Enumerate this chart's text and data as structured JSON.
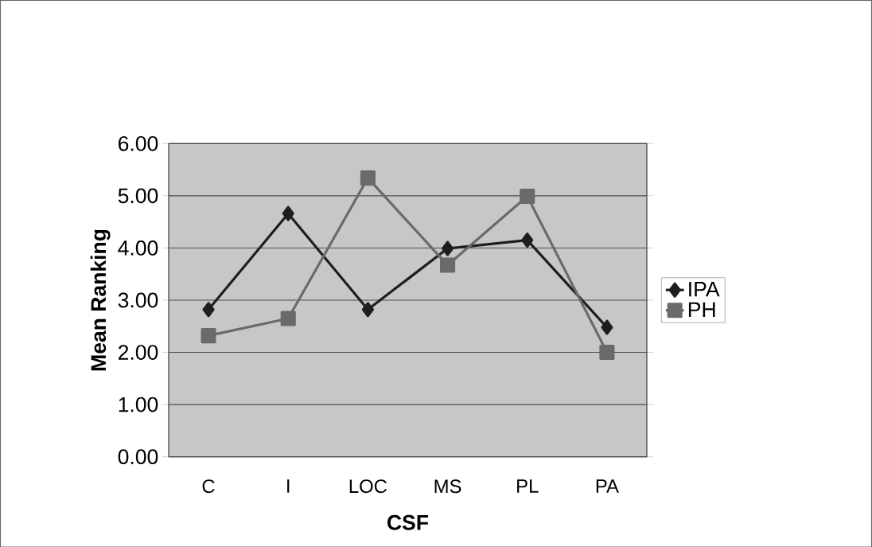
{
  "chart_data": {
    "type": "line",
    "xlabel": "CSF",
    "ylabel": "Mean Ranking",
    "categories": [
      "C",
      "I",
      "LOC",
      "MS",
      "PL",
      "PA"
    ],
    "series": [
      {
        "name": "IPA",
        "color": "#1e1e1e",
        "marker": "diamond",
        "values": [
          2.82,
          4.66,
          2.82,
          3.99,
          4.15,
          2.48
        ]
      },
      {
        "name": "PH",
        "color": "#6a6a6a",
        "marker": "square",
        "values": [
          2.32,
          2.65,
          5.34,
          3.67,
          4.99,
          2.0
        ]
      }
    ],
    "ylim": [
      0,
      6
    ],
    "yticks": [
      {
        "value": 0,
        "label": "0.00"
      },
      {
        "value": 1,
        "label": "1.00"
      },
      {
        "value": 2,
        "label": "2.00"
      },
      {
        "value": 3,
        "label": "3.00"
      },
      {
        "value": 4,
        "label": "4.00"
      },
      {
        "value": 5,
        "label": "5.00"
      },
      {
        "value": 6,
        "label": "6.00"
      }
    ],
    "grid": "y",
    "legend": "right",
    "line_style": "solid"
  }
}
